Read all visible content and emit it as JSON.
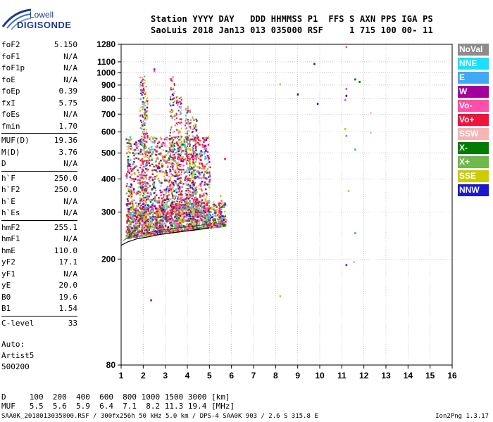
{
  "logo": {
    "line1": "Lowell",
    "line2": "DIGISONDE"
  },
  "header": {
    "line1": "Station YYYY DAY   DDD HHMMSS P1  FFS S AXN PPS IGA PS",
    "line2": "SaoLuis 2018 Jan13 013 035000 RSF     1 715 100 00- 11"
  },
  "params": {
    "group1": [
      {
        "label": "foF2",
        "value": "5.150"
      },
      {
        "label": "foF1",
        "value": "N/A"
      },
      {
        "label": "foF1p",
        "value": "N/A"
      },
      {
        "label": "foE",
        "value": "N/A"
      },
      {
        "label": "foEp",
        "value": "0.39"
      },
      {
        "label": "fxI",
        "value": "5.75"
      },
      {
        "label": "foEs",
        "value": "N/A"
      },
      {
        "label": "fmin",
        "value": "1.70"
      }
    ],
    "group2": [
      {
        "label": "MUF(D)",
        "value": "19.36"
      },
      {
        "label": "M(D)",
        "value": "3.76"
      },
      {
        "label": "D",
        "value": "N/A"
      }
    ],
    "group3": [
      {
        "label": "h`F",
        "value": "250.0"
      },
      {
        "label": "h`F2",
        "value": "250.0"
      },
      {
        "label": "h`E",
        "value": "N/A"
      },
      {
        "label": "h`Es",
        "value": "N/A"
      }
    ],
    "group4": [
      {
        "label": "hmF2",
        "value": "255.1"
      },
      {
        "label": "hmF1",
        "value": "N/A"
      },
      {
        "label": "hmE",
        "value": "110.0"
      },
      {
        "label": "yF2",
        "value": "17.1"
      },
      {
        "label": "yF1",
        "value": "N/A"
      },
      {
        "label": "yE",
        "value": "20.0"
      },
      {
        "label": "B0",
        "value": "19.6"
      },
      {
        "label": "B1",
        "value": "1.54"
      }
    ],
    "group5": [
      {
        "label": "C-level",
        "value": "33"
      }
    ]
  },
  "auto": {
    "line1": "Auto:",
    "line2": "Artist5",
    "line3": "500200"
  },
  "muf_table": {
    "line1": "D     100  200  400  600  800 1000 1500 3000 [km]",
    "line2": "MUF   5.5  5.6  5.9  6.4  7.1  8.2 11.3 19.4 [MHz]"
  },
  "footer": "SAA0K_2018013035000.RSF / 300fx256h 50 kHz 5.0 km / DPS-4 SAA0K 903 / 2.6 S 315.8 E",
  "version": "Ion2Png 1.3.17",
  "legend": [
    {
      "label": "NoVal",
      "color": "#8c8c8c"
    },
    {
      "label": "NNE",
      "color": "#1adfff"
    },
    {
      "label": "E",
      "color": "#3fa9f5"
    },
    {
      "label": "W",
      "color": "#a4009c"
    },
    {
      "label": "Vo-",
      "color": "#ff4fa8"
    },
    {
      "label": "Vo+",
      "color": "#f0143c"
    },
    {
      "label": "SSW",
      "color": "#f7b4b4"
    },
    {
      "label": "X-",
      "color": "#007d00"
    },
    {
      "label": "X+",
      "color": "#6fb84c"
    },
    {
      "label": "SSE",
      "color": "#cccc00"
    },
    {
      "label": "NNW",
      "color": "#1a1acc"
    }
  ],
  "chart_data": {
    "type": "scatter",
    "xlim": [
      1,
      16
    ],
    "ylim": [
      80,
      1280
    ],
    "y_scale": "log",
    "xticks": [
      "1",
      "2",
      "3",
      "4",
      "5",
      "6",
      "7",
      "8",
      "9",
      "10",
      "11",
      "12",
      "13",
      "14",
      "15",
      "16"
    ],
    "yticks": [
      80,
      200,
      300,
      400,
      500,
      600,
      700,
      800,
      900,
      1000,
      1100,
      1280
    ],
    "grid": true,
    "trace": {
      "x": [
        1.0,
        1.3,
        1.7,
        2.2,
        2.6,
        3.0,
        3.5,
        4.0,
        4.5,
        5.0
      ],
      "y": [
        225,
        232,
        238,
        242,
        246,
        249,
        252,
        255,
        258,
        262
      ]
    },
    "isolated_points": [
      {
        "x": 2.5,
        "y": 1030,
        "mode": "W"
      },
      {
        "x": 2.5,
        "y": 1015,
        "mode": "Vo-"
      },
      {
        "x": 9.75,
        "y": 1080,
        "mode": "NNW"
      },
      {
        "x": 9.0,
        "y": 830,
        "mode": "NNW"
      },
      {
        "x": 9.9,
        "y": 765,
        "mode": "NNW"
      },
      {
        "x": 8.2,
        "y": 905,
        "mode": "SSE"
      },
      {
        "x": 11.2,
        "y": 1250,
        "mode": "Vo-"
      },
      {
        "x": 11.6,
        "y": 945,
        "mode": "X-"
      },
      {
        "x": 11.8,
        "y": 925,
        "mode": "X-"
      },
      {
        "x": 11.2,
        "y": 870,
        "mode": "Vo-"
      },
      {
        "x": 11.2,
        "y": 820,
        "mode": "NNW"
      },
      {
        "x": 11.15,
        "y": 790,
        "mode": "Vo-"
      },
      {
        "x": 12.3,
        "y": 705,
        "mode": "SSW"
      },
      {
        "x": 11.15,
        "y": 615,
        "mode": "SSE"
      },
      {
        "x": 11.2,
        "y": 580,
        "mode": "E"
      },
      {
        "x": 12.3,
        "y": 595,
        "mode": "SSW"
      },
      {
        "x": 11.6,
        "y": 515,
        "mode": "E"
      },
      {
        "x": 5.7,
        "y": 475,
        "mode": "Vo+"
      },
      {
        "x": 11.3,
        "y": 360,
        "mode": "SSE"
      },
      {
        "x": 11.6,
        "y": 250,
        "mode": "E"
      },
      {
        "x": 11.2,
        "y": 190,
        "mode": "W"
      },
      {
        "x": 11.55,
        "y": 195,
        "mode": "SSW"
      },
      {
        "x": 8.2,
        "y": 145,
        "mode": "SSE"
      },
      {
        "x": 2.35,
        "y": 140,
        "mode": "W"
      },
      {
        "x": 5.5,
        "y": 345,
        "mode": "SSE"
      }
    ],
    "echo_region": {
      "x_range": [
        1.0,
        5.8
      ],
      "y_range": [
        240,
        980
      ],
      "dominant_modes": [
        "Vo+",
        "Vo-",
        "W",
        "SSE",
        "X+"
      ]
    }
  }
}
